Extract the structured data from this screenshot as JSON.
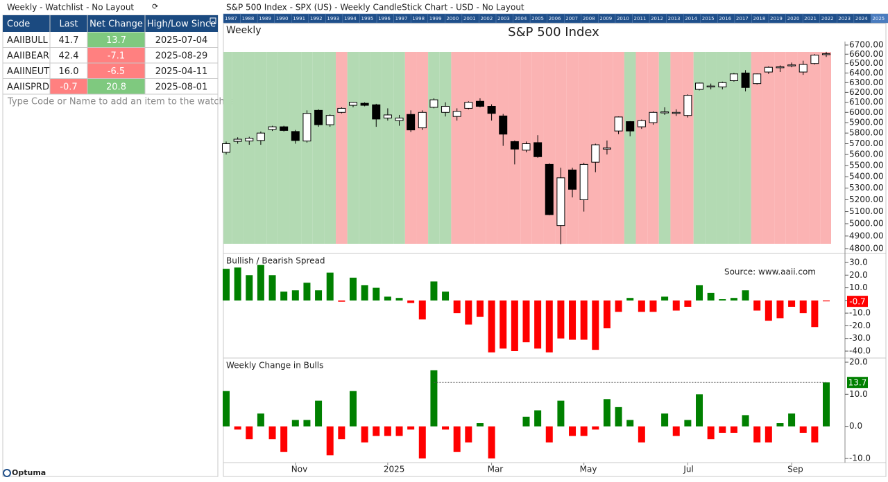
{
  "window": {
    "watchlist_title": "Weekly - Watchlist - No Layout",
    "chart_title": "S&P 500 Index - SPX (US) - Weekly CandleStick Chart - USD - No Layout",
    "years": [
      "1987",
      "1988",
      "1989",
      "1990",
      "1991",
      "1992",
      "1993",
      "1994",
      "1995",
      "1996",
      "1997",
      "1998",
      "1999",
      "2000",
      "2001",
      "2002",
      "2003",
      "2004",
      "2005",
      "2006",
      "2007",
      "2008",
      "2009",
      "2010",
      "2011",
      "2012",
      "2013",
      "2014",
      "2015",
      "2016",
      "2017",
      "2018",
      "2019",
      "2020",
      "2021",
      "2022",
      "2023",
      "2024",
      "2025"
    ],
    "logo": "Optuma"
  },
  "watchlist": {
    "columns": [
      "Code",
      "Last",
      "Net Change",
      "High/Low Since"
    ],
    "rows": [
      [
        "AAIIBULL",
        "41.7",
        "13.7",
        "2025-07-04"
      ],
      [
        "AAIIBEAR",
        "42.4",
        "-7.1",
        "2025-08-29"
      ],
      [
        "AAIINEUT",
        "16.0",
        "-6.5",
        "2025-04-11"
      ],
      [
        "AAIISPRD",
        "-0.7",
        "20.8",
        "2025-08-01"
      ]
    ],
    "hint": "Type Code or Name to add an item to the watchlist",
    "positive_color": "#7fc97f",
    "negative_color": "#ff8080"
  },
  "chart_data": [
    {
      "type": "candlestick",
      "period": "Weekly",
      "title": "S&P 500 Index",
      "open": [
        5620,
        5722,
        5725,
        5730,
        5835,
        5860,
        5815,
        5725,
        6020,
        5880,
        6000,
        6070,
        6090,
        6075,
        5945,
        5920,
        5980,
        5850,
        6050,
        6000,
        5960,
        6040,
        6110,
        6060,
        5965,
        5720,
        5640,
        5710,
        5510,
        4985,
        5460,
        5200,
        5530,
        5650,
        5820,
        5910,
        5860,
        5900,
        5995,
        5990,
        5970,
        6230,
        6255,
        6255,
        6320,
        6400,
        6290,
        6410,
        6455,
        6475,
        6410,
        6500,
        6595
      ],
      "high": [
        5720,
        5760,
        5765,
        5815,
        5870,
        5870,
        5830,
        6020,
        6030,
        5980,
        6050,
        6105,
        6100,
        6085,
        6040,
        5975,
        6020,
        6020,
        6140,
        6100,
        6040,
        6110,
        6140,
        6080,
        5985,
        5730,
        5720,
        5780,
        5520,
        5480,
        5480,
        5525,
        5700,
        5730,
        5960,
        5915,
        5930,
        6010,
        6050,
        6030,
        6180,
        6300,
        6290,
        6310,
        6400,
        6430,
        6395,
        6470,
        6480,
        6510,
        6530,
        6600,
        6625
      ],
      "low": [
        5600,
        5700,
        5690,
        5690,
        5820,
        5815,
        5700,
        5710,
        5860,
        5860,
        5990,
        6050,
        6060,
        5860,
        5920,
        5870,
        5810,
        5830,
        6040,
        5960,
        5920,
        6030,
        6050,
        5920,
        5680,
        5510,
        5620,
        5570,
        5070,
        4835,
        5220,
        5100,
        5440,
        5600,
        5790,
        5770,
        5840,
        5880,
        5975,
        5965,
        5950,
        6220,
        6230,
        6230,
        6310,
        6210,
        6280,
        6390,
        6410,
        6460,
        6380,
        6490,
        6570
      ],
      "close": [
        5700,
        5742,
        5752,
        5800,
        5860,
        5825,
        5730,
        5990,
        5880,
        5970,
        6040,
        6100,
        6070,
        5935,
        5975,
        5945,
        5830,
        6000,
        6125,
        6060,
        6010,
        6100,
        6060,
        5990,
        5790,
        5650,
        5700,
        5580,
        5075,
        5390,
        5290,
        5510,
        5690,
        5660,
        5955,
        5820,
        5920,
        6000,
        6005,
        6000,
        6170,
        6295,
        6265,
        6300,
        6390,
        6250,
        6390,
        6460,
        6465,
        6485,
        6490,
        6590,
        6605
      ],
      "up_color": "#ffffff",
      "down_color": "#000000",
      "log_scale": true,
      "ylim": [
        4800,
        6700
      ],
      "yticks": [
        {
          "value": 4800,
          "label": "4800.00"
        },
        {
          "value": 4900,
          "label": "4900.00"
        },
        {
          "value": 5000,
          "label": "5000.00"
        },
        {
          "value": 5100,
          "label": "5100.00"
        },
        {
          "value": 5200,
          "label": "5200.00"
        },
        {
          "value": 5300,
          "label": "5300.00"
        },
        {
          "value": 5400,
          "label": "5400.00"
        },
        {
          "value": 5500,
          "label": "5500.00"
        },
        {
          "value": 5600,
          "label": "5600.00"
        },
        {
          "value": 5700,
          "label": "5700.00"
        },
        {
          "value": 5800,
          "label": "5800.00"
        },
        {
          "value": 5900,
          "label": "5900.00"
        },
        {
          "value": 6000,
          "label": "6000.00"
        },
        {
          "value": 6100,
          "label": "6100.00"
        },
        {
          "value": 6200,
          "label": "6200.00"
        },
        {
          "value": 6300,
          "label": "6300.00"
        },
        {
          "value": 6400,
          "label": "6400.00"
        },
        {
          "value": 6500,
          "label": "6500.00"
        },
        {
          "value": 6600,
          "label": "6600.00"
        },
        {
          "value": 6700,
          "label": "6700.00"
        }
      ],
      "background_colors": {
        "positive": "#b3dab3",
        "negative": "#fbb3b3"
      }
    },
    {
      "type": "bar",
      "title": "Bullish / Bearish Spread",
      "annotation": "Source: www.aaii.com",
      "values": [
        25,
        26,
        20,
        28,
        20,
        7,
        8,
        14,
        8,
        22,
        -1,
        18,
        12,
        10,
        3,
        2,
        -2,
        -15,
        15,
        7,
        -10,
        -19,
        -13,
        -41,
        -38,
        -40,
        -33,
        -38,
        -41,
        -30,
        -31,
        -31,
        -39,
        -22,
        -9,
        2,
        -9,
        -9,
        3,
        -8,
        -5,
        12,
        6,
        1,
        2,
        8,
        -8,
        -16,
        -14,
        -5,
        -10,
        -21,
        -0.7
      ],
      "colors": {
        "positive": "#008000",
        "negative": "#ff0000"
      },
      "ylim": [
        -40,
        30
      ],
      "yticks": [
        {
          "value": 30,
          "label": "30.0"
        },
        {
          "value": 20,
          "label": "20.0"
        },
        {
          "value": 10,
          "label": "10.0"
        },
        {
          "value": 0,
          "label": "0.0"
        },
        {
          "value": -10,
          "label": "-10.0"
        },
        {
          "value": -20,
          "label": "-20.0"
        },
        {
          "value": -30,
          "label": "-30.0"
        },
        {
          "value": -40,
          "label": "-40.0"
        }
      ]
    },
    {
      "type": "bar",
      "title": "Weekly Change in Bulls",
      "categories": [
        null,
        null,
        null,
        null,
        null,
        null,
        "Nov",
        null,
        null,
        null,
        null,
        null,
        null,
        null,
        "2025",
        null,
        null,
        null,
        null,
        null,
        null,
        null,
        null,
        "Mar",
        null,
        null,
        null,
        null,
        null,
        null,
        null,
        "May",
        null,
        null,
        null,
        null,
        null,
        null,
        null,
        null,
        "Jul",
        null,
        null,
        null,
        null,
        null,
        null,
        null,
        null,
        "Sep",
        null,
        null,
        null
      ],
      "values": [
        11,
        -1,
        -4,
        4,
        -4,
        -8,
        2,
        2,
        8,
        -9,
        -4,
        11,
        -5,
        -3,
        -3,
        -3,
        -1,
        -10,
        17.5,
        -1,
        -8,
        -5,
        1,
        -10,
        0,
        0,
        3,
        5,
        -5,
        8,
        -3,
        -3,
        -1,
        8.5,
        6,
        2,
        -5,
        0,
        4,
        -3,
        2,
        10,
        -4,
        -2,
        -2,
        3.5,
        -5,
        -5,
        1,
        4,
        -2,
        -5,
        13.7
      ],
      "colors": {
        "positive": "#008000",
        "negative": "#ff0000"
      },
      "ylim": [
        -10,
        20
      ],
      "yticks": [
        {
          "value": 20,
          "label": "20.0"
        },
        {
          "value": 10,
          "label": "10.0"
        },
        {
          "value": 0,
          "label": "0.0"
        },
        {
          "value": -10,
          "label": "-10.0"
        }
      ]
    }
  ]
}
